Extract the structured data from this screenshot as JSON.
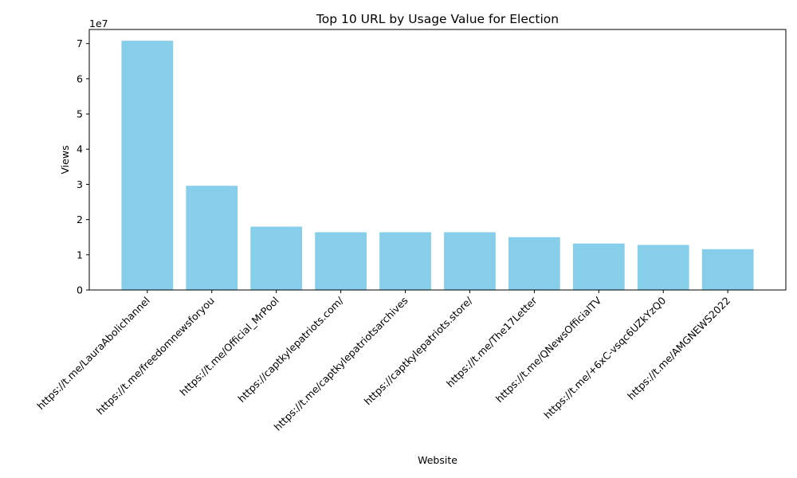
{
  "chart_data": {
    "type": "bar",
    "title": "Top 10 URL by Usage Value for Election",
    "xlabel": "Website",
    "ylabel": "Views",
    "y_offset_label": "1e7",
    "ylim": [
      0,
      74000000
    ],
    "yticks": [
      0,
      10000000,
      20000000,
      30000000,
      40000000,
      50000000,
      60000000,
      70000000
    ],
    "ytick_labels": [
      "0",
      "1",
      "2",
      "3",
      "4",
      "5",
      "6",
      "7"
    ],
    "bar_color": "#87ceeb",
    "grid": false,
    "categories": [
      "https://t.me/LauraAbolichannel",
      "https://t.me/freedomnewsforyou",
      "https://t.me/Official_MrPool",
      "https://captkylepatriots.com/",
      "https://t.me/captkylepatriotsarchives",
      "https://captkylepatriots.store/",
      "https://t.me/The17Letter",
      "https://t.me/QNewsOfficialTV",
      "https://t.me/+6xC-vsqc6UZkYzQ0",
      "https://t.me/AMGNEWS2022"
    ],
    "values": [
      70800000,
      29600000,
      18000000,
      16400000,
      16400000,
      16400000,
      15000000,
      13200000,
      12800000,
      11600000
    ]
  }
}
